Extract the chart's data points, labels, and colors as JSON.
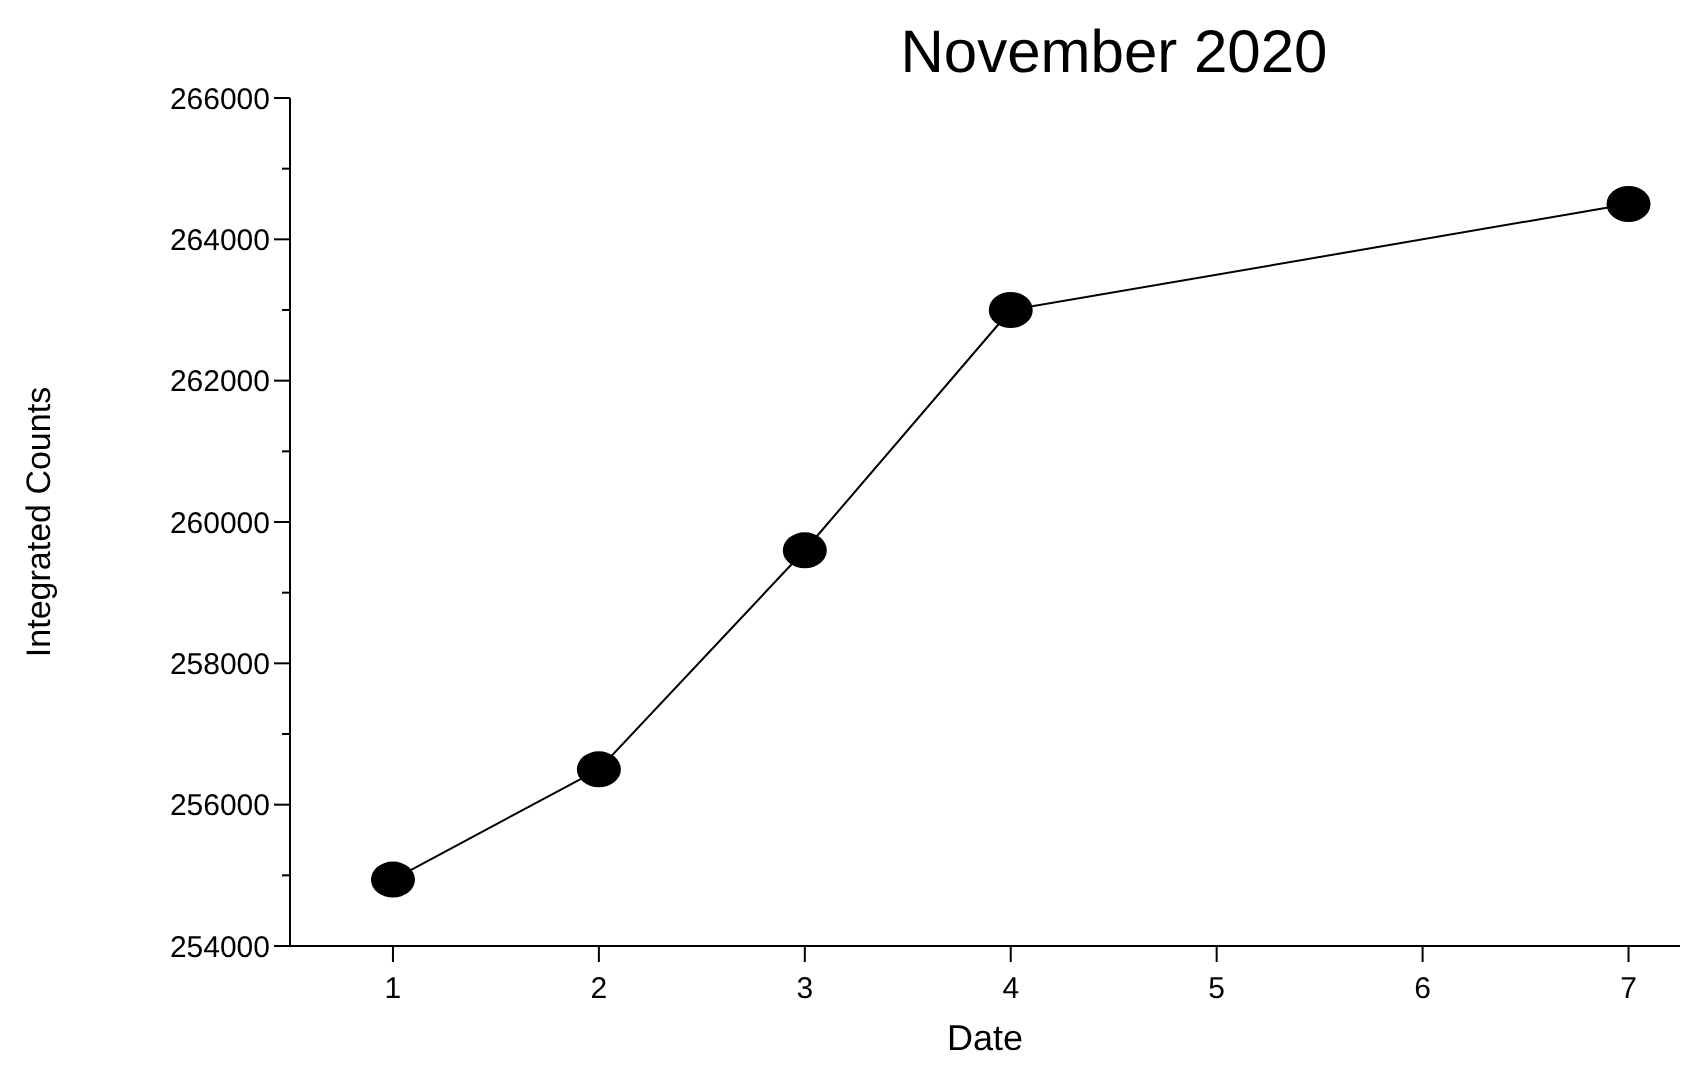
{
  "chart_data": {
    "type": "line",
    "title": "November 2020",
    "xlabel": "Date",
    "ylabel": "Integrated Counts",
    "x": [
      1,
      2,
      3,
      4,
      7
    ],
    "series": [
      {
        "color": "#000000",
        "values": [
          254940,
          256500,
          259600,
          263000,
          264500
        ]
      }
    ],
    "xlim": [
      0.5,
      7.25
    ],
    "xticks": [
      1,
      2,
      3,
      4,
      5,
      6,
      7
    ],
    "ylim": [
      254000,
      266000
    ],
    "yticks": [
      254000,
      {
        "value": 255000,
        "label": null
      },
      256000,
      {
        "value": 257000,
        "label": null
      },
      258000,
      {
        "value": 259000,
        "label": null
      },
      260000,
      {
        "value": 261000,
        "label": null
      },
      262000,
      {
        "value": 263000,
        "label": null
      },
      264000,
      {
        "value": 265000,
        "label": null
      },
      266000
    ],
    "marker": "circle",
    "line_style": "solid"
  }
}
